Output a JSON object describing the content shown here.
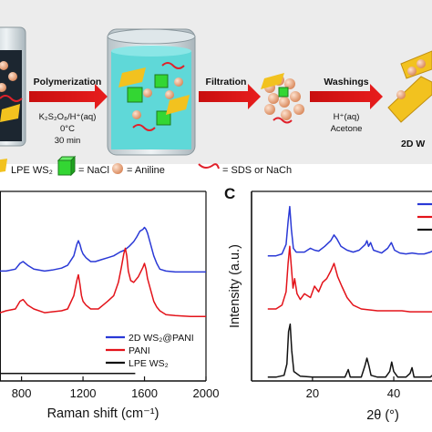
{
  "scheme": {
    "arrows": [
      {
        "top": "Polymerization",
        "bottom_lines": [
          "K₂S₂O₈/H⁺(aq)",
          "0°C",
          "30 min"
        ]
      },
      {
        "top": "Filtration",
        "bottom_lines": []
      },
      {
        "top": "Washings",
        "bottom_lines": [
          "H⁺(aq)",
          "Acetone"
        ]
      }
    ],
    "product_label": "2D W",
    "legend": [
      {
        "label": "LPE WS₂",
        "icon": "ws2-sheet-icon"
      },
      {
        "label": "= NaCl",
        "icon": "nacl-cube-icon"
      },
      {
        "label": "= Aniline",
        "icon": "aniline-sphere-icon"
      },
      {
        "label": "= SDS or NaCh",
        "icon": "surfactant-squiggle-icon"
      }
    ]
  },
  "colors": {
    "blue": "#2a39d6",
    "red": "#e3131a",
    "black": "#111111",
    "water": "#5fd8d8",
    "nacl": "#33d633",
    "aniline": "#f0a878",
    "ws2": "#f2c21f"
  },
  "chart_data": [
    {
      "type": "line",
      "xlabel": "Raman shift (cm⁻¹)",
      "xlim": [
        660,
        2000
      ],
      "xticks": [
        "800",
        "1200",
        "1600",
        "2000"
      ],
      "legend_position": "lower-right",
      "series": [
        {
          "name": "2D WS₂@PANI",
          "color": "#2a39d6",
          "x": [
            660,
            700,
            760,
            790,
            810,
            840,
            880,
            950,
            1000,
            1060,
            1100,
            1140,
            1160,
            1170,
            1180,
            1190,
            1200,
            1220,
            1250,
            1280,
            1320,
            1360,
            1400,
            1440,
            1470,
            1500,
            1530,
            1550,
            1570,
            1590,
            1600,
            1610,
            1620,
            1640,
            1660,
            1680,
            1700,
            1740,
            1800,
            1900,
            2000
          ],
          "y": [
            0.58,
            0.58,
            0.59,
            0.62,
            0.63,
            0.61,
            0.59,
            0.58,
            0.585,
            0.595,
            0.61,
            0.66,
            0.72,
            0.74,
            0.72,
            0.69,
            0.67,
            0.65,
            0.63,
            0.63,
            0.64,
            0.65,
            0.66,
            0.68,
            0.69,
            0.71,
            0.735,
            0.76,
            0.79,
            0.8,
            0.81,
            0.8,
            0.78,
            0.72,
            0.66,
            0.62,
            0.59,
            0.58,
            0.575,
            0.575,
            0.575
          ]
        },
        {
          "name": "PANI",
          "color": "#e3131a",
          "x": [
            660,
            700,
            760,
            790,
            810,
            840,
            880,
            950,
            1000,
            1060,
            1100,
            1140,
            1160,
            1170,
            1180,
            1190,
            1200,
            1220,
            1250,
            1300,
            1330,
            1360,
            1400,
            1430,
            1450,
            1465,
            1475,
            1485,
            1495,
            1510,
            1530,
            1560,
            1590,
            1600,
            1610,
            1620,
            1640,
            1660,
            1680,
            1700,
            1740,
            1800,
            1900,
            2000
          ],
          "y": [
            0.36,
            0.37,
            0.38,
            0.42,
            0.43,
            0.4,
            0.38,
            0.36,
            0.365,
            0.37,
            0.38,
            0.45,
            0.53,
            0.56,
            0.51,
            0.45,
            0.42,
            0.4,
            0.38,
            0.38,
            0.4,
            0.42,
            0.45,
            0.52,
            0.6,
            0.67,
            0.7,
            0.66,
            0.58,
            0.53,
            0.52,
            0.55,
            0.6,
            0.62,
            0.59,
            0.54,
            0.48,
            0.42,
            0.39,
            0.37,
            0.35,
            0.345,
            0.34,
            0.34
          ]
        },
        {
          "name": "LPE WS₂",
          "color": "#111111",
          "x": [
            660,
            1000,
            1300,
            1540
          ],
          "y": [
            0.04,
            0.04,
            0.04,
            0.04
          ]
        }
      ]
    },
    {
      "type": "line",
      "panel_label": "C",
      "xlabel": "2θ (°)",
      "ylabel": "Intensity (a.u.)",
      "xlim": [
        5,
        53
      ],
      "xticks": [
        "20",
        "40"
      ],
      "series": [
        {
          "name": "",
          "color": "#2a39d6",
          "x": [
            9,
            11,
            12.5,
            13.5,
            14.0,
            14.4,
            14.8,
            15.3,
            16.0,
            17.0,
            18.0,
            19.5,
            20.5,
            21.5,
            23,
            24.5,
            25.3,
            26,
            27,
            28.5,
            30,
            31.5,
            33.0,
            33.4,
            33.8,
            34.3,
            35,
            37,
            38.5,
            39.4,
            40.2,
            41.5,
            43,
            44.5,
            46,
            47.5,
            49,
            50.5,
            52
          ],
          "y": [
            0.66,
            0.66,
            0.67,
            0.72,
            0.84,
            0.92,
            0.8,
            0.7,
            0.68,
            0.68,
            0.68,
            0.7,
            0.69,
            0.685,
            0.71,
            0.74,
            0.77,
            0.75,
            0.71,
            0.69,
            0.68,
            0.69,
            0.72,
            0.74,
            0.71,
            0.73,
            0.69,
            0.675,
            0.7,
            0.73,
            0.69,
            0.675,
            0.67,
            0.675,
            0.67,
            0.67,
            0.68,
            0.695,
            0.69
          ]
        },
        {
          "name": "",
          "color": "#e3131a",
          "x": [
            9,
            11,
            12.5,
            13.5,
            14.0,
            14.4,
            14.8,
            15.2,
            15.6,
            16.2,
            17,
            18,
            19.5,
            20.5,
            21.5,
            22.5,
            23.5,
            24.5,
            25.3,
            26.2,
            27.2,
            28.5,
            30,
            32,
            34,
            36,
            38,
            40,
            42,
            44,
            46,
            48,
            50,
            52
          ],
          "y": [
            0.38,
            0.38,
            0.4,
            0.47,
            0.62,
            0.71,
            0.6,
            0.49,
            0.54,
            0.46,
            0.43,
            0.46,
            0.44,
            0.5,
            0.47,
            0.52,
            0.54,
            0.58,
            0.62,
            0.55,
            0.5,
            0.44,
            0.4,
            0.38,
            0.375,
            0.37,
            0.37,
            0.37,
            0.37,
            0.365,
            0.365,
            0.365,
            0.365,
            0.365
          ]
        },
        {
          "name": "",
          "color": "#111111",
          "x": [
            9,
            11,
            13,
            13.7,
            14.1,
            14.5,
            14.9,
            15.4,
            17,
            20,
            24,
            28,
            28.8,
            29.3,
            30,
            32,
            32.9,
            33.4,
            33.9,
            34.4,
            36,
            38,
            39.0,
            39.5,
            40.0,
            41,
            43,
            44.0,
            44.5,
            45,
            47,
            49,
            50.5,
            51,
            51.5,
            53
          ],
          "y": [
            0.02,
            0.02,
            0.03,
            0.09,
            0.26,
            0.3,
            0.16,
            0.05,
            0.025,
            0.02,
            0.02,
            0.02,
            0.06,
            0.02,
            0.02,
            0.02,
            0.08,
            0.12,
            0.08,
            0.03,
            0.02,
            0.02,
            0.05,
            0.1,
            0.05,
            0.02,
            0.02,
            0.04,
            0.07,
            0.02,
            0.02,
            0.02,
            0.05,
            0.08,
            0.04,
            0.02
          ]
        }
      ]
    }
  ]
}
